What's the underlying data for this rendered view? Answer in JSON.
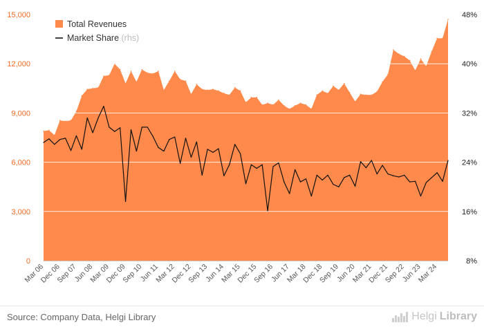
{
  "chart_data": {
    "type": "area",
    "title": "",
    "xlabel": "",
    "ylabel": "",
    "x": [
      "Mar 06",
      "Jun 06",
      "Sep 06",
      "Dec 06",
      "Mar 07",
      "Jun 07",
      "Sep 07",
      "Dec 07",
      "Mar 08",
      "Jun 08",
      "Sep 08",
      "Dec 08",
      "Mar 09",
      "Jun 09",
      "Sep 09",
      "Dec 09",
      "Mar 10",
      "Jun 10",
      "Sep 10",
      "Dec 10",
      "Mar 11",
      "Jun 11",
      "Sep 11",
      "Dec 11",
      "Mar 12",
      "Jun 12",
      "Sep 12",
      "Dec 12",
      "Mar 13",
      "Jun 13",
      "Sep 13",
      "Dec 13",
      "Mar 14",
      "Jun 14",
      "Sep 14",
      "Dec 14",
      "Mar 15",
      "Jun 15",
      "Sep 15",
      "Dec 15",
      "Mar 16",
      "Jun 16",
      "Sep 16",
      "Dec 16",
      "Mar 17",
      "Jun 17",
      "Sep 17",
      "Dec 17",
      "Mar 18",
      "Jun 18",
      "Sep 18",
      "Dec 18",
      "Mar 19",
      "Jun 19",
      "Sep 19",
      "Dec 19",
      "Mar 20",
      "Jun 20",
      "Sep 20",
      "Dec 20",
      "Mar 21",
      "Jun 21",
      "Sep 21",
      "Dec 21",
      "Mar 22",
      "Jun 22",
      "Sep 22",
      "Dec 22",
      "Mar 23",
      "Jun 23",
      "Sep 23",
      "Dec 23",
      "Mar 24",
      "Jun 24",
      "Sep 24"
    ],
    "x_tick_labels": [
      "Mar 06",
      "Dec 06",
      "Sep 07",
      "Jun 08",
      "Mar 09",
      "Dec 09",
      "Sep 10",
      "Jun 11",
      "Mar 12",
      "Dec 12",
      "Sep 13",
      "Jun 14",
      "Mar 15",
      "Dec 15",
      "Sep 16",
      "Jun 17",
      "Mar 18",
      "Dec 18",
      "Sep 19",
      "Jun 20",
      "Mar 21",
      "Dec 21",
      "Sep 22",
      "Jun 23",
      "Mar 24"
    ],
    "series": [
      {
        "name": "Total Revenues",
        "axis": "left",
        "kind": "area",
        "color": "#ff8a4c",
        "values": [
          7900,
          7950,
          7650,
          8550,
          8500,
          8550,
          9100,
          10050,
          10450,
          10500,
          10550,
          11250,
          11300,
          12000,
          11650,
          10800,
          11550,
          10900,
          11650,
          11450,
          11400,
          11550,
          10400,
          10950,
          11550,
          11050,
          10950,
          10150,
          10750,
          10450,
          10400,
          10450,
          10350,
          10200,
          10100,
          10550,
          10350,
          9650,
          9950,
          9950,
          9500,
          9600,
          9500,
          9800,
          9450,
          9250,
          9450,
          9600,
          9500,
          9250,
          10100,
          10350,
          10200,
          10650,
          10400,
          10800,
          10250,
          9700,
          10150,
          10100,
          10100,
          10300,
          10900,
          11350,
          12850,
          12600,
          12450,
          12200,
          11600,
          12300,
          11850,
          12750,
          13550,
          13550,
          14700
        ],
        "ylim": [
          0,
          15000
        ]
      },
      {
        "name": "Market Share",
        "axis": "right",
        "kind": "line",
        "color": "#111111",
        "values": [
          27.2,
          27.8,
          26.9,
          27.7,
          27.9,
          25.9,
          28.3,
          26.1,
          31.2,
          28.8,
          31.2,
          33.1,
          29.7,
          29.0,
          29.6,
          17.6,
          29.3,
          25.8,
          29.7,
          29.7,
          28.2,
          26.4,
          25.8,
          27.7,
          28.1,
          23.8,
          27.9,
          24.8,
          27.3,
          21.9,
          26.1,
          25.6,
          26.2,
          21.8,
          23.6,
          26.9,
          25.4,
          20.5,
          23.6,
          23.0,
          23.6,
          16.1,
          23.3,
          23.9,
          20.8,
          18.9,
          22.8,
          20.8,
          21.3,
          18.5,
          21.9,
          21.1,
          21.9,
          20.4,
          20.0,
          21.5,
          21.9,
          20.1,
          24.1,
          23.1,
          24.3,
          22.1,
          23.5,
          22.1,
          21.8,
          21.6,
          21.9,
          20.8,
          20.9,
          18.5,
          20.7,
          21.5,
          22.3,
          20.9,
          24.3
        ],
        "ylim": [
          8,
          48
        ]
      }
    ],
    "y_left_ticks": [
      0,
      3000,
      6000,
      9000,
      12000,
      15000
    ],
    "y_left_tick_labels": [
      "0",
      "3,000",
      "6,000",
      "9,000",
      "12,000",
      "15,000"
    ],
    "y_right_ticks": [
      8,
      16,
      24,
      32,
      40,
      48
    ],
    "y_right_tick_labels": [
      "8%",
      "16%",
      "24%",
      "32%",
      "40%",
      "48%"
    ],
    "legend": {
      "placement": "top-left",
      "items": [
        {
          "label": "Total Revenues",
          "suffix": "",
          "color": "#ff8a4c",
          "kind": "area"
        },
        {
          "label": "Market Share",
          "suffix": "(rhs)",
          "color": "#111111",
          "kind": "line"
        }
      ]
    },
    "grid": {
      "horizontal": true,
      "vertical": false,
      "color": "#ffffff"
    },
    "colors": {
      "area": "#ff8a4c",
      "line": "#111111",
      "left_axis_text": "#f26a21"
    }
  },
  "footer": {
    "source": "Source: Company Data, Helgi Library",
    "brand_prefix": "Helgi",
    "brand_suffix": "Library"
  }
}
